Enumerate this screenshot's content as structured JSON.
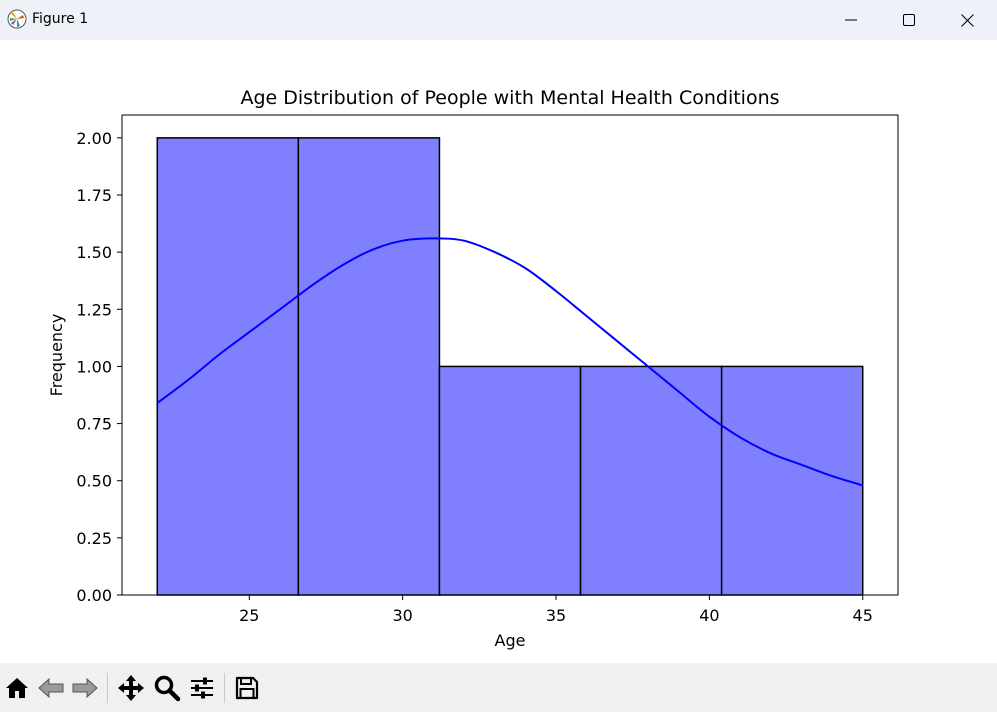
{
  "window": {
    "title": "Figure 1",
    "icons": {
      "app": "matplotlib-icon",
      "minimize": "minimize-icon",
      "maximize": "maximize-icon",
      "close": "close-icon"
    }
  },
  "toolbar": {
    "tools": [
      {
        "name": "home",
        "icon": "home-icon"
      },
      {
        "name": "back",
        "icon": "back-arrow-icon"
      },
      {
        "name": "forward",
        "icon": "forward-arrow-icon"
      },
      {
        "name": "pan",
        "icon": "move-icon"
      },
      {
        "name": "zoom",
        "icon": "zoom-icon"
      },
      {
        "name": "configure",
        "icon": "sliders-icon"
      },
      {
        "name": "save",
        "icon": "save-icon"
      }
    ]
  },
  "chart_data": {
    "type": "bar",
    "title": "Age Distribution of People with Mental Health Conditions",
    "xlabel": "Age",
    "ylabel": "Frequency",
    "xlim": [
      20.85,
      46.15
    ],
    "ylim": [
      0,
      2.1
    ],
    "xticks": [
      25,
      30,
      35,
      40,
      45
    ],
    "yticks": [
      0.0,
      0.25,
      0.5,
      0.75,
      1.0,
      1.25,
      1.5,
      1.75,
      2.0
    ],
    "ytick_labels": [
      "0.00",
      "0.25",
      "0.50",
      "0.75",
      "1.00",
      "1.25",
      "1.50",
      "1.75",
      "2.00"
    ],
    "bins": [
      {
        "start": 22.0,
        "end": 26.6,
        "value": 2
      },
      {
        "start": 26.6,
        "end": 31.2,
        "value": 2
      },
      {
        "start": 31.2,
        "end": 35.8,
        "value": 1
      },
      {
        "start": 35.8,
        "end": 40.4,
        "value": 1
      },
      {
        "start": 40.4,
        "end": 45.0,
        "value": 1
      }
    ],
    "kde": {
      "x": [
        22,
        23,
        24,
        25,
        26,
        27,
        28,
        29,
        30,
        31,
        32,
        33,
        34,
        35,
        36,
        37,
        38,
        39,
        40,
        41,
        42,
        43,
        44,
        45
      ],
      "y": [
        0.84,
        0.94,
        1.05,
        1.15,
        1.25,
        1.35,
        1.44,
        1.51,
        1.55,
        1.56,
        1.55,
        1.5,
        1.43,
        1.33,
        1.22,
        1.11,
        1.0,
        0.89,
        0.78,
        0.69,
        0.62,
        0.57,
        0.52,
        0.48
      ]
    },
    "colors": {
      "bar_fill": "#8080ff",
      "bar_edge": "#000000",
      "kde_line": "#0000ff"
    },
    "grid": false,
    "legend": "none"
  }
}
